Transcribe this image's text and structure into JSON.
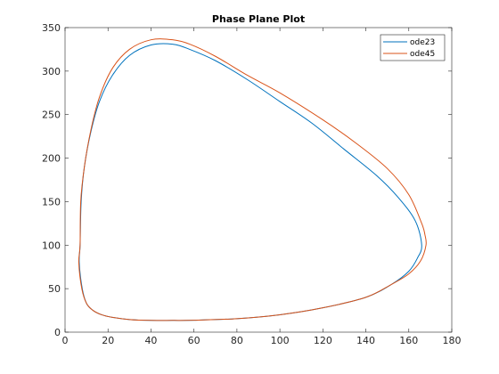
{
  "chart_data": {
    "type": "line",
    "title": "Phase Plane Plot",
    "xlabel": "",
    "ylabel": "",
    "xlim": [
      0,
      180
    ],
    "ylim": [
      0,
      350
    ],
    "xticks": [
      0,
      20,
      40,
      60,
      80,
      100,
      120,
      140,
      160,
      180
    ],
    "yticks": [
      0,
      50,
      100,
      150,
      200,
      250,
      300,
      350
    ],
    "grid": false,
    "legend_position": "top-right",
    "series": [
      {
        "name": "ode23",
        "color": "#0072BD",
        "x": [
          7,
          6.6,
          8,
          10,
          13,
          17,
          22,
          30,
          40,
          50,
          60,
          80,
          100,
          120,
          140,
          152,
          160,
          164,
          166,
          163,
          155,
          145,
          130,
          115,
          100,
          85,
          70,
          58,
          50,
          40,
          30,
          22,
          16,
          12,
          9,
          7.5,
          7
        ],
        "y": [
          100,
          80,
          50,
          33,
          25,
          20,
          17,
          14.5,
          13.5,
          13.5,
          13.7,
          15.5,
          20,
          28,
          40,
          55,
          70,
          85,
          100,
          128,
          155,
          180,
          210,
          240,
          265,
          290,
          312,
          325,
          331,
          330,
          318,
          295,
          265,
          230,
          190,
          150,
          100
        ]
      },
      {
        "name": "ode45",
        "color": "#D95319",
        "x": [
          7,
          6.4,
          7.8,
          10,
          13,
          17,
          22,
          30,
          40,
          50,
          60,
          80,
          100,
          120,
          140,
          152,
          160,
          165.5,
          168,
          167.5,
          166,
          160,
          150,
          135,
          120,
          100,
          85,
          70,
          58,
          50,
          40,
          30,
          22,
          16,
          12,
          9,
          7.3,
          7
        ],
        "y": [
          100,
          80,
          50,
          33,
          25,
          20,
          17,
          14.5,
          13.5,
          13.5,
          13.7,
          15.5,
          20,
          28,
          40,
          55,
          67,
          82,
          100,
          112,
          125,
          158,
          188,
          218,
          244,
          275,
          295,
          317,
          331,
          336,
          336,
          325,
          303,
          270,
          232,
          190,
          150,
          100
        ]
      }
    ]
  }
}
